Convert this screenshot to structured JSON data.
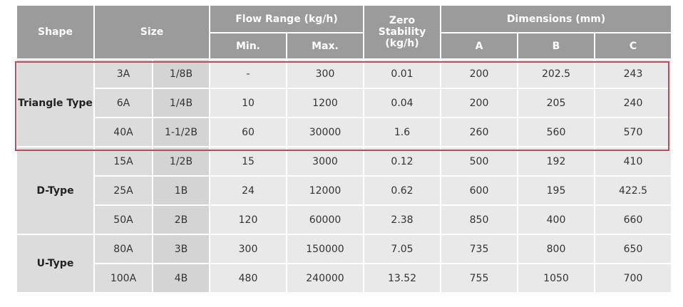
{
  "headers": {
    "shape": "Shape",
    "size": "Size",
    "flow_range": "Flow Range (kg/h)",
    "flow_min": "Min.",
    "flow_max": "Max.",
    "zero_stability": "Zero Stability (kg/h)",
    "dimensions": "Dimensions (mm)",
    "dim_a": "A",
    "dim_b": "B",
    "dim_c": "C"
  },
  "groups": [
    {
      "shape": "Triangle Type",
      "highlighted": true,
      "rows": [
        {
          "size1": "3A",
          "size2": "1/8B",
          "min": "-",
          "max": "300",
          "zero": "0.01",
          "a": "200",
          "b": "202.5",
          "c": "243"
        },
        {
          "size1": "6A",
          "size2": "1/4B",
          "min": "10",
          "max": "1200",
          "zero": "0.04",
          "a": "200",
          "b": "205",
          "c": "240"
        },
        {
          "size1": "40A",
          "size2": "1-1/2B",
          "min": "60",
          "max": "30000",
          "zero": "1.6",
          "a": "260",
          "b": "560",
          "c": "570"
        }
      ]
    },
    {
      "shape": "D-Type",
      "highlighted": false,
      "rows": [
        {
          "size1": "15A",
          "size2": "1/2B",
          "min": "15",
          "max": "3000",
          "zero": "0.12",
          "a": "500",
          "b": "192",
          "c": "410"
        },
        {
          "size1": "25A",
          "size2": "1B",
          "min": "24",
          "max": "12000",
          "zero": "0.62",
          "a": "600",
          "b": "195",
          "c": "422.5"
        },
        {
          "size1": "50A",
          "size2": "2B",
          "min": "120",
          "max": "60000",
          "zero": "2.38",
          "a": "850",
          "b": "400",
          "c": "660"
        }
      ]
    },
    {
      "shape": "U-Type",
      "highlighted": false,
      "rows": [
        {
          "size1": "80A",
          "size2": "3B",
          "min": "300",
          "max": "150000",
          "zero": "7.05",
          "a": "735",
          "b": "800",
          "c": "650"
        },
        {
          "size1": "100A",
          "size2": "4B",
          "min": "480",
          "max": "240000",
          "zero": "13.52",
          "a": "755",
          "b": "1050",
          "c": "700"
        }
      ]
    }
  ],
  "colors": {
    "header_bg": "#9b9b9b",
    "shape_bg": "#dcdcdc",
    "value_bg": "#e9e9e9",
    "highlight_border": "#b4505a"
  }
}
